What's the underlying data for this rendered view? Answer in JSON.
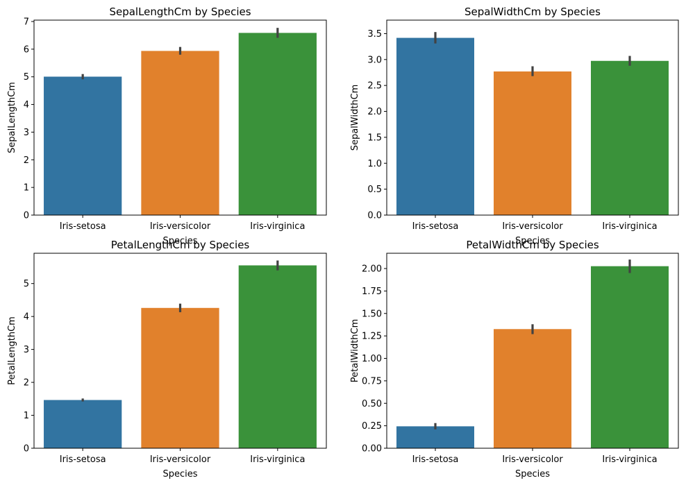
{
  "chart_data": [
    {
      "type": "bar",
      "title": "SepalLengthCm by Species",
      "xlabel": "Species",
      "ylabel": "SepalLengthCm",
      "categories": [
        "Iris-setosa",
        "Iris-versicolor",
        "Iris-virginica"
      ],
      "values": [
        5.006,
        5.936,
        6.588
      ],
      "error_low": [
        4.91,
        5.8,
        6.41
      ],
      "error_high": [
        5.1,
        6.08,
        6.77
      ],
      "ylim": [
        0,
        7.05
      ],
      "yticks": [
        0,
        1,
        2,
        3,
        4,
        5,
        6,
        7
      ],
      "ytick_labels": [
        "0",
        "1",
        "2",
        "3",
        "4",
        "5",
        "6",
        "7"
      ],
      "colors": [
        "#3274a1",
        "#e1812c",
        "#3a923a"
      ],
      "error_color": "#424242"
    },
    {
      "type": "bar",
      "title": "SepalWidthCm by Species",
      "xlabel": "Species",
      "ylabel": "SepalWidthCm",
      "categories": [
        "Iris-setosa",
        "Iris-versicolor",
        "Iris-virginica"
      ],
      "values": [
        3.418,
        2.77,
        2.974
      ],
      "error_low": [
        3.31,
        2.68,
        2.88
      ],
      "error_high": [
        3.53,
        2.87,
        3.07
      ],
      "ylim": [
        0,
        3.76
      ],
      "yticks": [
        0,
        0.5,
        1.0,
        1.5,
        2.0,
        2.5,
        3.0,
        3.5
      ],
      "ytick_labels": [
        "0.0",
        "0.5",
        "1.0",
        "1.5",
        "2.0",
        "2.5",
        "3.0",
        "3.5"
      ],
      "colors": [
        "#3274a1",
        "#e1812c",
        "#3a923a"
      ],
      "error_color": "#424242"
    },
    {
      "type": "bar",
      "title": "PetalLengthCm by Species",
      "xlabel": "Species",
      "ylabel": "PetalLengthCm",
      "categories": [
        "Iris-setosa",
        "Iris-versicolor",
        "Iris-virginica"
      ],
      "values": [
        1.464,
        4.26,
        5.552
      ],
      "error_low": [
        1.42,
        4.13,
        5.4
      ],
      "error_high": [
        1.51,
        4.39,
        5.7
      ],
      "ylim": [
        0,
        5.92
      ],
      "yticks": [
        0,
        1,
        2,
        3,
        4,
        5
      ],
      "ytick_labels": [
        "0",
        "1",
        "2",
        "3",
        "4",
        "5"
      ],
      "colors": [
        "#3274a1",
        "#e1812c",
        "#3a923a"
      ],
      "error_color": "#424242"
    },
    {
      "type": "bar",
      "title": "PetalWidthCm by Species",
      "xlabel": "Species",
      "ylabel": "PetalWidthCm",
      "categories": [
        "Iris-setosa",
        "Iris-versicolor",
        "Iris-virginica"
      ],
      "values": [
        0.244,
        1.326,
        2.026
      ],
      "error_low": [
        0.21,
        1.27,
        1.95
      ],
      "error_high": [
        0.28,
        1.38,
        2.1
      ],
      "ylim": [
        0,
        2.17
      ],
      "yticks": [
        0,
        0.25,
        0.5,
        0.75,
        1.0,
        1.25,
        1.5,
        1.75,
        2.0
      ],
      "ytick_labels": [
        "0.00",
        "0.25",
        "0.50",
        "0.75",
        "1.00",
        "1.25",
        "1.50",
        "1.75",
        "2.00"
      ],
      "colors": [
        "#3274a1",
        "#e1812c",
        "#3a923a"
      ],
      "error_color": "#424242"
    }
  ]
}
